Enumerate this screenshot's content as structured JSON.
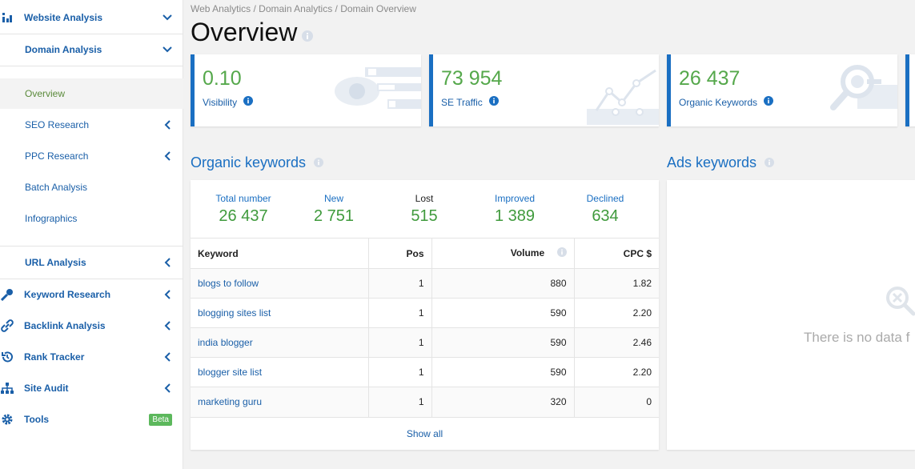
{
  "sidebar": {
    "website_analysis": "Website Analysis",
    "domain_analysis": "Domain Analysis",
    "overview": "Overview",
    "seo_research": "SEO Research",
    "ppc_research": "PPC Research",
    "batch_analysis": "Batch Analysis",
    "infographics": "Infographics",
    "url_analysis": "URL Analysis",
    "keyword_research": "Keyword Research",
    "backlink_analysis": "Backlink Analysis",
    "rank_tracker": "Rank Tracker",
    "site_audit": "Site Audit",
    "tools": "Tools",
    "beta": "Beta"
  },
  "breadcrumb": "Web Analytics / Domain Analytics / Domain Overview",
  "title": "Overview",
  "cards": [
    {
      "value": "0.10",
      "label": "Visibility"
    },
    {
      "value": "73 954",
      "label": "SE Traffic"
    },
    {
      "value": "26 437",
      "label": "Organic Keywords"
    }
  ],
  "organic": {
    "title": "Organic keywords",
    "stats": [
      {
        "label": "Total number",
        "value": "26 437"
      },
      {
        "label": "New",
        "value": "2 751"
      },
      {
        "label": "Lost",
        "value": "515"
      },
      {
        "label": "Improved",
        "value": "1 389"
      },
      {
        "label": "Declined",
        "value": "634"
      }
    ],
    "columns": [
      "Keyword",
      "Pos",
      "Volume",
      "CPC $"
    ],
    "rows": [
      {
        "keyword": "blogs to follow",
        "pos": "1",
        "volume": "880",
        "cpc": "1.82"
      },
      {
        "keyword": "blogging sites list",
        "pos": "1",
        "volume": "590",
        "cpc": "2.20"
      },
      {
        "keyword": "india blogger",
        "pos": "1",
        "volume": "590",
        "cpc": "2.46"
      },
      {
        "keyword": "blogger site list",
        "pos": "1",
        "volume": "590",
        "cpc": "2.20"
      },
      {
        "keyword": "marketing guru",
        "pos": "1",
        "volume": "320",
        "cpc": "0"
      }
    ],
    "show_all": "Show all"
  },
  "ads": {
    "title": "Ads keywords",
    "no_data": "There is no data f"
  },
  "colors": {
    "accent": "#1a6fc2",
    "green": "#55a84b",
    "beta": "#5cb85c"
  }
}
